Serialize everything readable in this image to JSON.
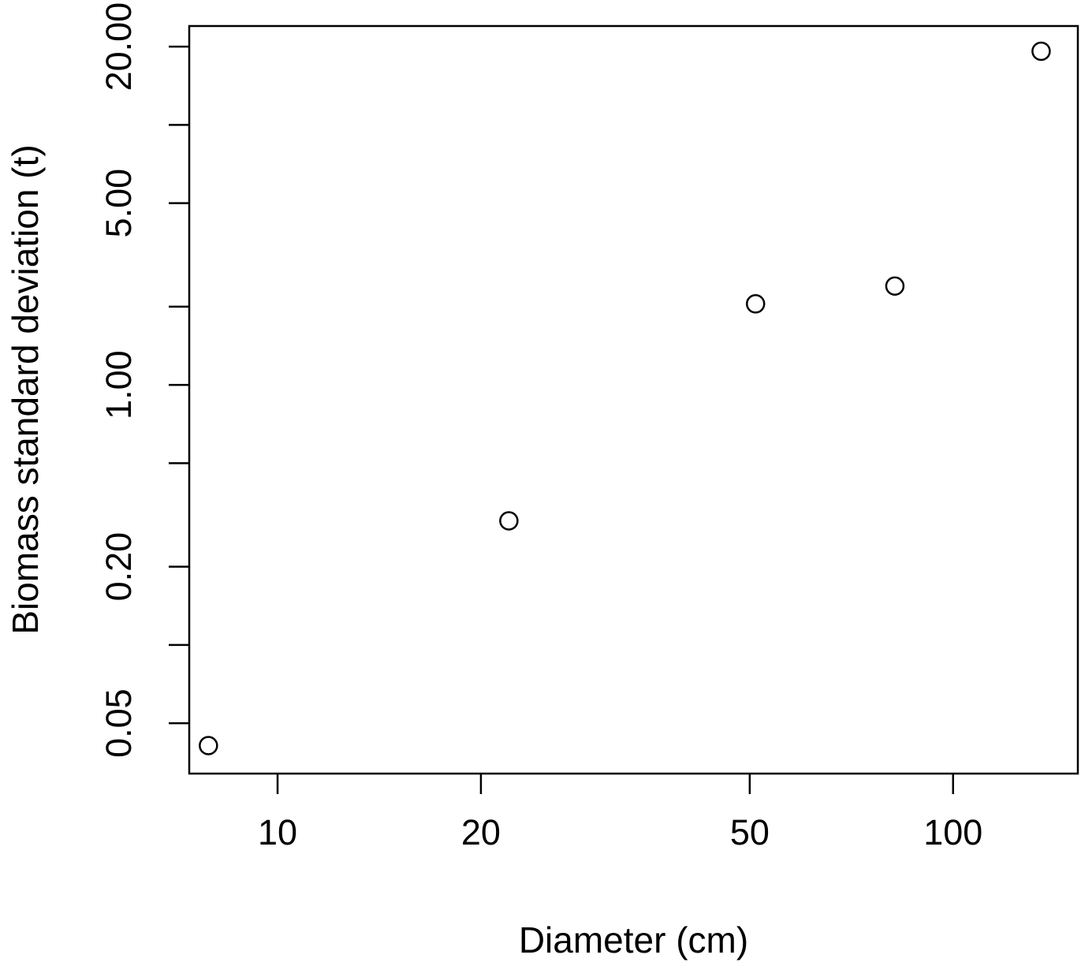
{
  "chart_data": {
    "type": "scatter",
    "title": "",
    "xlabel": "Diameter (cm)",
    "ylabel": "Biomass standard deviation (t)",
    "x_scale": "log",
    "y_scale": "log",
    "xlim": [
      7.4,
      153
    ],
    "ylim": [
      0.032,
      24
    ],
    "x_ticks": [
      {
        "value": 10,
        "label": "10"
      },
      {
        "value": 20,
        "label": "20"
      },
      {
        "value": 50,
        "label": "50"
      },
      {
        "value": 100,
        "label": "100"
      }
    ],
    "y_ticks": [
      {
        "value": 0.05,
        "label": "0.05"
      },
      {
        "value": 0.1,
        "label": ""
      },
      {
        "value": 0.2,
        "label": "0.20"
      },
      {
        "value": 0.5,
        "label": ""
      },
      {
        "value": 1,
        "label": "1.00"
      },
      {
        "value": 2,
        "label": ""
      },
      {
        "value": 5,
        "label": "5.00"
      },
      {
        "value": 10,
        "label": ""
      },
      {
        "value": 20,
        "label": "20.00"
      }
    ],
    "points": [
      {
        "x": 7.9,
        "y": 0.041
      },
      {
        "x": 22,
        "y": 0.3
      },
      {
        "x": 51,
        "y": 2.05
      },
      {
        "x": 82,
        "y": 2.4
      },
      {
        "x": 135,
        "y": 19.2
      }
    ],
    "marker": "open-circle",
    "grid": false,
    "legend": "none",
    "color": "#000000"
  }
}
